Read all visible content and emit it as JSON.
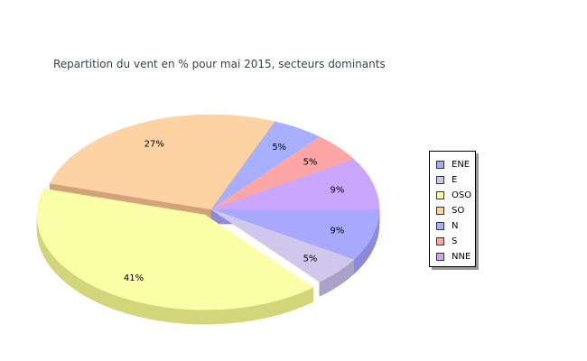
{
  "chart_data": {
    "type": "pie",
    "title": "Repartition du vent en % pour mai 2015, secteurs dominants",
    "slices": [
      {
        "name": "ENE",
        "value": 9,
        "label": "9%",
        "color": "#a8a8ff",
        "side": "#8b8bd6"
      },
      {
        "name": "E",
        "value": 5,
        "label": "5%",
        "color": "#d0c8ec",
        "side": "#aaa2c6"
      },
      {
        "name": "OSO",
        "value": 41,
        "label": "41%",
        "color": "#fafea6",
        "side": "#d2d57a"
      },
      {
        "name": "SO",
        "value": 27,
        "label": "27%",
        "color": "#fed3a4",
        "side": "#d2a278"
      },
      {
        "name": "N",
        "value": 5,
        "label": "5%",
        "color": "#a6b0fe",
        "side": "#848ed6"
      },
      {
        "name": "S",
        "value": 5,
        "label": "5%",
        "color": "#fea6a6",
        "side": "#d28484"
      },
      {
        "name": "NNE",
        "value": 9,
        "label": "9%",
        "color": "#caa6fe",
        "side": "#a484d6"
      }
    ],
    "exploded_slice": "OSO",
    "legend_position": "right",
    "style": "3d"
  }
}
